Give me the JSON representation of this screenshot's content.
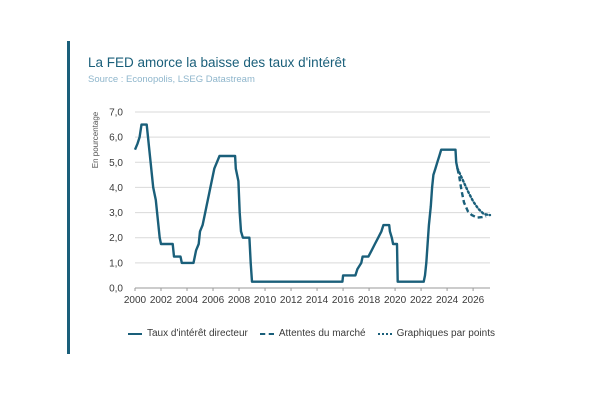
{
  "header": {
    "title": "La FED amorce la baisse des taux d'intérêt",
    "source": "Source : Econopolis, LSEG Datastream"
  },
  "colors": {
    "accent": "#1a5f7a",
    "grid": "#d9d9d9",
    "source_text": "#8fb6cc"
  },
  "chart_data": {
    "type": "line",
    "title": "La FED amorce la baisse des taux d'intérêt",
    "xlabel": "",
    "ylabel": "En pourcentage",
    "xlim": [
      2000,
      2027.3
    ],
    "ylim": [
      0,
      7
    ],
    "xticks": [
      "2000",
      "2002",
      "2004",
      "2006",
      "2008",
      "2010",
      "2012",
      "2014",
      "2016",
      "2018",
      "2020",
      "2022",
      "2024",
      "2026"
    ],
    "yticks": [
      "0,0",
      "1,0",
      "2,0",
      "3,0",
      "4,0",
      "5,0",
      "6,0",
      "7,0"
    ],
    "grid": "horizontal",
    "legend_position": "bottom",
    "series": [
      {
        "name": "Taux d'intérêt directeur",
        "style": "solid",
        "points": [
          [
            2000.0,
            5.5
          ],
          [
            2000.2,
            5.75
          ],
          [
            2000.35,
            6.0
          ],
          [
            2000.5,
            6.5
          ],
          [
            2000.9,
            6.5
          ],
          [
            2001.0,
            6.0
          ],
          [
            2001.1,
            5.5
          ],
          [
            2001.2,
            5.0
          ],
          [
            2001.3,
            4.5
          ],
          [
            2001.4,
            4.0
          ],
          [
            2001.5,
            3.75
          ],
          [
            2001.6,
            3.5
          ],
          [
            2001.7,
            3.0
          ],
          [
            2001.8,
            2.5
          ],
          [
            2001.9,
            2.0
          ],
          [
            2002.0,
            1.75
          ],
          [
            2002.9,
            1.75
          ],
          [
            2003.0,
            1.25
          ],
          [
            2003.5,
            1.25
          ],
          [
            2003.6,
            1.0
          ],
          [
            2004.5,
            1.0
          ],
          [
            2004.6,
            1.25
          ],
          [
            2004.7,
            1.5
          ],
          [
            2004.9,
            1.75
          ],
          [
            2005.0,
            2.25
          ],
          [
            2005.2,
            2.5
          ],
          [
            2005.3,
            2.75
          ],
          [
            2005.4,
            3.0
          ],
          [
            2005.5,
            3.25
          ],
          [
            2005.6,
            3.5
          ],
          [
            2005.7,
            3.75
          ],
          [
            2005.8,
            4.0
          ],
          [
            2005.9,
            4.25
          ],
          [
            2006.0,
            4.5
          ],
          [
            2006.1,
            4.75
          ],
          [
            2006.3,
            5.0
          ],
          [
            2006.5,
            5.25
          ],
          [
            2007.7,
            5.25
          ],
          [
            2007.75,
            4.75
          ],
          [
            2007.85,
            4.5
          ],
          [
            2007.95,
            4.25
          ],
          [
            2008.05,
            3.0
          ],
          [
            2008.15,
            2.25
          ],
          [
            2008.3,
            2.0
          ],
          [
            2008.8,
            2.0
          ],
          [
            2008.9,
            1.0
          ],
          [
            2009.0,
            0.25
          ],
          [
            2015.95,
            0.25
          ],
          [
            2016.0,
            0.5
          ],
          [
            2016.95,
            0.5
          ],
          [
            2017.1,
            0.75
          ],
          [
            2017.4,
            1.0
          ],
          [
            2017.5,
            1.25
          ],
          [
            2017.95,
            1.25
          ],
          [
            2018.2,
            1.5
          ],
          [
            2018.45,
            1.75
          ],
          [
            2018.7,
            2.0
          ],
          [
            2018.95,
            2.25
          ],
          [
            2019.1,
            2.5
          ],
          [
            2019.55,
            2.5
          ],
          [
            2019.6,
            2.25
          ],
          [
            2019.75,
            2.0
          ],
          [
            2019.85,
            1.75
          ],
          [
            2020.15,
            1.75
          ],
          [
            2020.2,
            0.25
          ],
          [
            2022.2,
            0.25
          ],
          [
            2022.3,
            0.5
          ],
          [
            2022.4,
            1.0
          ],
          [
            2022.5,
            1.75
          ],
          [
            2022.6,
            2.5
          ],
          [
            2022.75,
            3.25
          ],
          [
            2022.85,
            4.0
          ],
          [
            2022.95,
            4.5
          ],
          [
            2023.1,
            4.75
          ],
          [
            2023.25,
            5.0
          ],
          [
            2023.4,
            5.25
          ],
          [
            2023.55,
            5.5
          ],
          [
            2024.65,
            5.5
          ],
          [
            2024.7,
            5.0
          ],
          [
            2024.8,
            4.75
          ]
        ]
      },
      {
        "name": "Attentes du marché",
        "style": "dashed",
        "points": [
          [
            2024.8,
            4.75
          ],
          [
            2024.95,
            4.4
          ],
          [
            2025.1,
            3.9
          ],
          [
            2025.3,
            3.4
          ],
          [
            2025.6,
            3.05
          ],
          [
            2025.9,
            2.9
          ],
          [
            2026.3,
            2.8
          ],
          [
            2026.7,
            2.82
          ],
          [
            2027.0,
            2.85
          ]
        ]
      },
      {
        "name": "Graphiques par points",
        "style": "dotted",
        "points": [
          [
            2024.8,
            4.75
          ],
          [
            2025.2,
            4.3
          ],
          [
            2025.6,
            3.85
          ],
          [
            2026.0,
            3.45
          ],
          [
            2026.4,
            3.15
          ],
          [
            2026.8,
            2.95
          ],
          [
            2027.2,
            2.9
          ],
          [
            2027.3,
            2.9
          ]
        ]
      }
    ]
  }
}
